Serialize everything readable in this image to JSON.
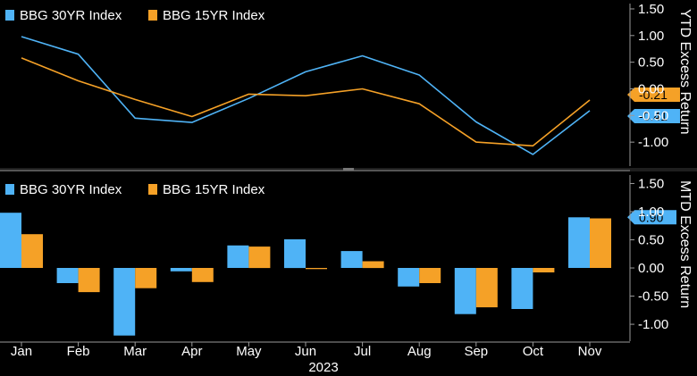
{
  "chart_data": [
    {
      "type": "line",
      "panel": "top",
      "ylabel": "YTD Excess Return",
      "ylim": [
        -1.45,
        1.6
      ],
      "yticks": [
        1.5,
        1.0,
        0.5,
        0.0,
        -0.5,
        -1.0
      ],
      "ytick_labels": [
        "1.50",
        "1.00",
        "0.50",
        "0.00",
        "-0.50",
        "-1.00"
      ],
      "legend": {
        "placement": "top-left"
      },
      "series": [
        {
          "name": "BBG 30YR Index",
          "color": "#4fb3f6",
          "values": [
            0.98,
            0.65,
            -0.55,
            -0.63,
            -0.18,
            0.32,
            0.62,
            0.26,
            -0.62,
            -1.23,
            -0.41
          ]
        },
        {
          "name": "BBG 15YR Index",
          "color": "#f5a127",
          "values": [
            0.58,
            0.15,
            -0.2,
            -0.52,
            -0.1,
            -0.13,
            0.0,
            -0.28,
            -1.0,
            -1.07,
            -0.21
          ]
        }
      ],
      "last_value_labels": [
        {
          "text": "-0.21",
          "color": "#f5a127",
          "value": -0.21
        },
        {
          "text": "-0.41",
          "color": "#4fb3f6",
          "value": -0.41
        }
      ]
    },
    {
      "type": "bar",
      "panel": "bottom",
      "ylabel": "MTD Excess Return",
      "ylim": [
        -1.3,
        1.65
      ],
      "yticks": [
        1.5,
        1.0,
        0.5,
        0.0,
        -0.5,
        -1.0
      ],
      "ytick_labels": [
        "1.50",
        "1.00",
        "0.50",
        "0.00",
        "-0.50",
        "-1.00"
      ],
      "legend": {
        "placement": "top-left"
      },
      "series": [
        {
          "name": "BBG 30YR Index",
          "color": "#4fb3f6",
          "values": [
            0.98,
            -0.27,
            -1.2,
            -0.06,
            0.4,
            0.51,
            0.3,
            -0.33,
            -0.82,
            -0.73,
            0.9
          ]
        },
        {
          "name": "BBG 15YR Index",
          "color": "#f5a127",
          "values": [
            0.6,
            -0.43,
            -0.36,
            -0.25,
            0.38,
            -0.02,
            0.12,
            -0.27,
            -0.7,
            -0.08,
            0.88
          ]
        }
      ],
      "last_value_labels": [
        {
          "text": "0.90",
          "color": "#4fb3f6",
          "value": 0.9
        }
      ]
    }
  ],
  "x_axis": {
    "categories": [
      "Jan",
      "Feb",
      "Mar",
      "Apr",
      "May",
      "Jun",
      "Jul",
      "Aug",
      "Sep",
      "Oct",
      "Nov"
    ],
    "year_label": "2023"
  },
  "colors": {
    "background": "#000000",
    "axis": "#9a9a9a",
    "text": "#ffffff"
  }
}
